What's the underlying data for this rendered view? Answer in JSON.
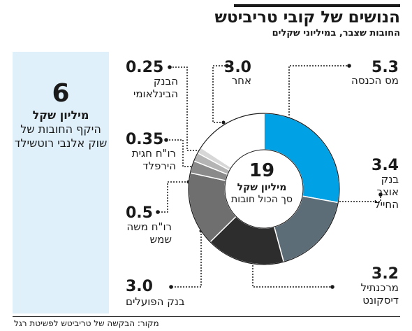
{
  "header": {
    "title": "הנושים של קובי טריביטש",
    "subtitle": "החובות שצבר, במיליוני שקלים"
  },
  "side_panel": {
    "value": "6",
    "unit": "מיליון שקל",
    "description": "היקף החובות של שוק אלנבי רוטשילד",
    "icon": "money-bag-shekel-icon"
  },
  "chart_data": {
    "type": "pie",
    "donut": true,
    "unit": "במיליוני שקלים",
    "total": {
      "value": "19",
      "unit": "מיליון שקל",
      "label": "סך הכול חובות"
    },
    "slices": [
      {
        "name": "מס הכנסה",
        "value": 5.3,
        "value_label": "5.3",
        "color": "#00a2e5"
      },
      {
        "name": "בנק אוצר החייל",
        "value": 3.4,
        "value_label": "3.4",
        "color": "#5d6d78"
      },
      {
        "name": "מרכנתיל דיסקונט",
        "value": 3.2,
        "value_label": "3.2",
        "color": "#2d2d2d"
      },
      {
        "name": "בנק הפועלים",
        "value": 3.0,
        "value_label": "3.0",
        "color": "#6f6f6f"
      },
      {
        "name": "רו\"ח משה שמש",
        "value": 0.5,
        "value_label": "0.5",
        "color": "#8a8a8a"
      },
      {
        "name": "רו\"ח חגית הירפלד",
        "value": 0.35,
        "value_label": "0.35",
        "color": "#b4b4b4"
      },
      {
        "name": "הבנק הבינלאומי",
        "value": 0.25,
        "value_label": "0.25",
        "color": "#d7d7d7"
      },
      {
        "name": "אחר",
        "value": 3.0,
        "value_label": "3.0",
        "color": "#ffffff"
      }
    ]
  },
  "source": "מקור: הבקשה של טריביטש לפשיטת רגל"
}
